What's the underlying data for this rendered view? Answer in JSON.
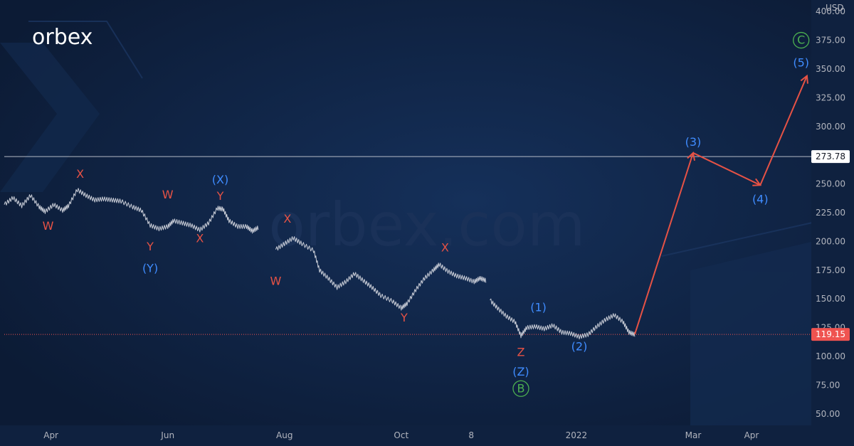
{
  "brand": {
    "logo_text": "orbex",
    "watermark": "orbex.com"
  },
  "chart_data": {
    "type": "line",
    "currency": "USD",
    "ylim": [
      40,
      410
    ],
    "y_ticks": [
      50,
      75,
      100,
      125,
      150,
      175,
      200,
      225,
      250,
      275,
      300,
      325,
      350,
      375,
      400
    ],
    "y_tick_labels": [
      "50.00",
      "75.00",
      "100.00",
      "125.00",
      "150.00",
      "175.00",
      "200.00",
      "225.00",
      "250.00",
      "275.00",
      "300.00",
      "325.00",
      "350.00",
      "375.00",
      "400.00"
    ],
    "x_ticks": [
      {
        "label": "Apr",
        "t": 2.0
      },
      {
        "label": "Jun",
        "t": 4.0
      },
      {
        "label": "Aug",
        "t": 6.0
      },
      {
        "label": "Oct",
        "t": 8.0
      },
      {
        "label": "8",
        "t": 9.2
      },
      {
        "label": "2022",
        "t": 11.0
      },
      {
        "label": "Mar",
        "t": 13.0
      },
      {
        "label": "Apr",
        "t": 14.0
      }
    ],
    "xlim": [
      1.2,
      15.0
    ],
    "price_series": {
      "name": "price",
      "points": [
        [
          1.2,
          232
        ],
        [
          1.35,
          238
        ],
        [
          1.5,
          231
        ],
        [
          1.65,
          240
        ],
        [
          1.8,
          230
        ],
        [
          1.9,
          226
        ],
        [
          2.05,
          232
        ],
        [
          2.2,
          227
        ],
        [
          2.3,
          231
        ],
        [
          2.45,
          245
        ],
        [
          2.6,
          240
        ],
        [
          2.75,
          236
        ],
        [
          2.9,
          237
        ],
        [
          3.05,
          236
        ],
        [
          3.2,
          235
        ],
        [
          3.4,
          230
        ],
        [
          3.55,
          227
        ],
        [
          3.7,
          214
        ],
        [
          3.85,
          211
        ],
        [
          4.0,
          213
        ],
        [
          4.1,
          218
        ],
        [
          4.25,
          216
        ],
        [
          4.4,
          214
        ],
        [
          4.55,
          210
        ],
        [
          4.7,
          216
        ],
        [
          4.85,
          229
        ],
        [
          4.95,
          228
        ],
        [
          5.05,
          218
        ],
        [
          5.2,
          213
        ],
        [
          5.35,
          213
        ],
        [
          5.45,
          209
        ],
        [
          5.55,
          212
        ],
        [
          5.85,
          193
        ],
        [
          6.0,
          198
        ],
        [
          6.15,
          203
        ],
        [
          6.3,
          198
        ],
        [
          6.5,
          192
        ],
        [
          6.6,
          175
        ],
        [
          6.75,
          168
        ],
        [
          6.9,
          160
        ],
        [
          7.05,
          165
        ],
        [
          7.2,
          172
        ],
        [
          7.35,
          166
        ],
        [
          7.5,
          160
        ],
        [
          7.65,
          153
        ],
        [
          7.85,
          148
        ],
        [
          8.0,
          142
        ],
        [
          8.1,
          146
        ],
        [
          8.25,
          158
        ],
        [
          8.4,
          168
        ],
        [
          8.55,
          175
        ],
        [
          8.65,
          180
        ],
        [
          8.8,
          174
        ],
        [
          8.95,
          170
        ],
        [
          9.1,
          168
        ],
        [
          9.25,
          165
        ],
        [
          9.35,
          168
        ],
        [
          9.45,
          166
        ],
        [
          9.52,
          149
        ],
        [
          9.65,
          142
        ],
        [
          9.8,
          135
        ],
        [
          9.95,
          130
        ],
        [
          10.05,
          118
        ],
        [
          10.15,
          125
        ],
        [
          10.3,
          126
        ],
        [
          10.45,
          124
        ],
        [
          10.6,
          127
        ],
        [
          10.75,
          121
        ],
        [
          10.9,
          120
        ],
        [
          11.05,
          117
        ],
        [
          11.2,
          119
        ],
        [
          11.35,
          126
        ],
        [
          11.5,
          132
        ],
        [
          11.65,
          136
        ],
        [
          11.8,
          130
        ],
        [
          11.9,
          121
        ],
        [
          12.0,
          119
        ]
      ]
    },
    "projection": {
      "color": "#e65245",
      "points": [
        [
          12.0,
          119.15
        ],
        [
          13.0,
          277
        ],
        [
          14.15,
          249
        ],
        [
          14.95,
          344
        ]
      ]
    },
    "levels": [
      {
        "value": 273.78,
        "label": "273.78",
        "style": "solid",
        "color": "#d1d4dc"
      },
      {
        "value": 119.15,
        "label": "119.15",
        "style": "dotted",
        "color": "#ef5350"
      }
    ],
    "annotations": [
      {
        "text": "W",
        "t": 1.95,
        "v": 214,
        "color": "#e65245"
      },
      {
        "text": "X",
        "t": 2.5,
        "v": 259,
        "color": "#e65245"
      },
      {
        "text": "Y",
        "t": 3.7,
        "v": 196,
        "color": "#e65245"
      },
      {
        "text": "(Y)",
        "t": 3.7,
        "v": 177,
        "color": "#3f8cff"
      },
      {
        "text": "W",
        "t": 4.0,
        "v": 241,
        "color": "#e65245"
      },
      {
        "text": "X",
        "t": 4.55,
        "v": 203,
        "color": "#e65245"
      },
      {
        "text": "(X)",
        "t": 4.9,
        "v": 254,
        "color": "#3f8cff"
      },
      {
        "text": "Y",
        "t": 4.9,
        "v": 240,
        "color": "#e65245"
      },
      {
        "text": "X",
        "t": 6.05,
        "v": 220,
        "color": "#e65245"
      },
      {
        "text": "W",
        "t": 5.85,
        "v": 166,
        "color": "#e65245"
      },
      {
        "text": "Y",
        "t": 8.05,
        "v": 134,
        "color": "#e65245"
      },
      {
        "text": "X",
        "t": 8.75,
        "v": 195,
        "color": "#e65245"
      },
      {
        "text": "(1)",
        "t": 10.35,
        "v": 143,
        "color": "#3f8cff"
      },
      {
        "text": "Z",
        "t": 10.05,
        "v": 104,
        "color": "#e65245"
      },
      {
        "text": "(Z)",
        "t": 10.05,
        "v": 87,
        "color": "#3f8cff"
      },
      {
        "text": "(2)",
        "t": 11.05,
        "v": 109,
        "color": "#3f8cff"
      },
      {
        "text": "(3)",
        "t": 13.0,
        "v": 287,
        "color": "#3f8cff"
      },
      {
        "text": "(4)",
        "t": 14.15,
        "v": 237,
        "color": "#3f8cff"
      },
      {
        "text": "(5)",
        "t": 14.85,
        "v": 356,
        "color": "#3f8cff"
      }
    ],
    "circled_annotations": [
      {
        "text": "B",
        "t": 10.05,
        "v": 72,
        "color": "#4caf50"
      },
      {
        "text": "C",
        "t": 14.85,
        "v": 375,
        "color": "#4caf50"
      }
    ]
  }
}
